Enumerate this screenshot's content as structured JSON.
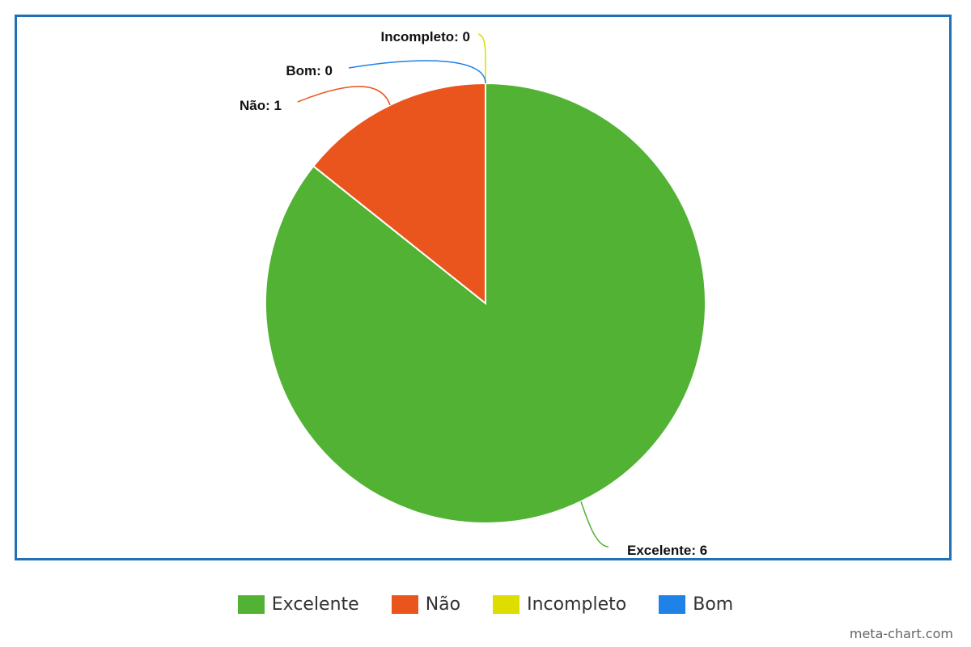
{
  "chart_data": {
    "type": "pie",
    "title": "",
    "categories": [
      "Excelente",
      "Não",
      "Incompleto",
      "Bom"
    ],
    "values": [
      6,
      1,
      0,
      0
    ],
    "colors": [
      "#52b234",
      "#ea541d",
      "#dddd00",
      "#1e82e6"
    ],
    "slice_labels": [
      "Excelente: 6",
      "Não: 1",
      "Incompleto: 0",
      "Bom: 0"
    ],
    "legend_position": "bottom",
    "frame_color": "#1f72b8"
  },
  "watermark": "meta-chart.com"
}
